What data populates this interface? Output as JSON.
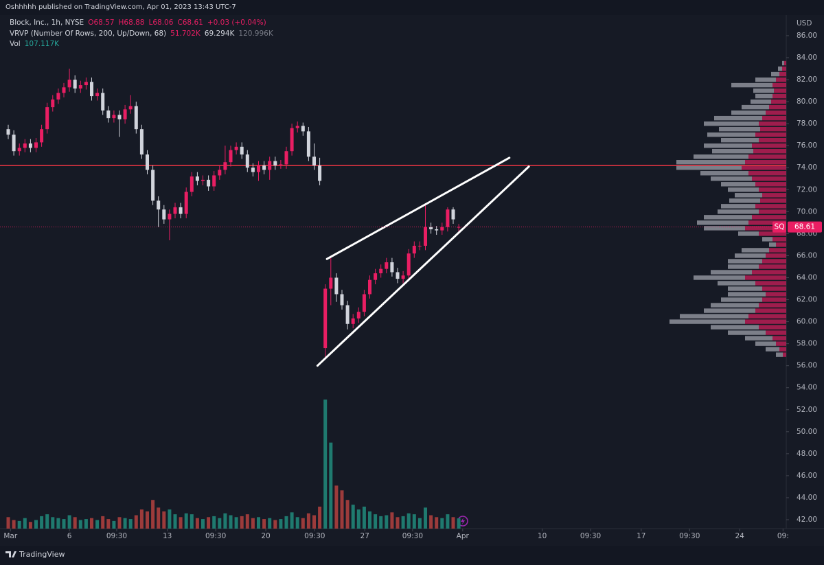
{
  "chart_data": {
    "type": "candlestick",
    "published": "Oshhhhh published on TradingView.com, Apr 01, 2023 13:43 UTC-7",
    "title": "Block, Inc., 1h, NYSE",
    "ohlc_legend": [
      "O68.57",
      "H68.88",
      "L68.06",
      "C68.61",
      "+0.03 (+0.04%)"
    ],
    "vrvp_title": "VRVP (Number Of Rows, 200, Up/Down, 68)",
    "vrvp_legend": [
      "51.702K",
      "69.294K",
      "120.996K"
    ],
    "volume_title": "Vol",
    "volume_legend": "107.117K",
    "currency": "USD",
    "symbol": "SQ",
    "footer": "TradingView",
    "up_color": "#e91e63",
    "down_color": "#d1d4dc",
    "volume_up_color": "#1f7a6f",
    "volume_down_color": "#9c3b3b",
    "ylim": [
      41.19,
      87.37
    ],
    "yticks": [
      {
        "value": 42,
        "label": "42.00"
      },
      {
        "value": 44,
        "label": "44.00"
      },
      {
        "value": 46,
        "label": "46.00"
      },
      {
        "value": 48,
        "label": "48.00"
      },
      {
        "value": 50,
        "label": "50.00"
      },
      {
        "value": 52,
        "label": "52.00"
      },
      {
        "value": 54,
        "label": "54.00"
      },
      {
        "value": 56,
        "label": "56.00"
      },
      {
        "value": 58,
        "label": "58.00"
      },
      {
        "value": 60,
        "label": "60.00"
      },
      {
        "value": 62,
        "label": "62.00"
      },
      {
        "value": 64,
        "label": "64.00"
      },
      {
        "value": 66,
        "label": "66.00"
      },
      {
        "value": 68,
        "label": "68.00"
      },
      {
        "value": 70,
        "label": "70.00"
      },
      {
        "value": 72,
        "label": "72.00"
      },
      {
        "value": 74,
        "label": "74.00"
      },
      {
        "value": 76,
        "label": "76.00"
      },
      {
        "value": 78,
        "label": "78.00"
      },
      {
        "value": 80,
        "label": "80.00"
      },
      {
        "value": 82,
        "label": "82.00"
      },
      {
        "value": 84,
        "label": "84.00"
      },
      {
        "value": 86,
        "label": "86.00"
      }
    ],
    "xticks": [
      {
        "value": 0.4,
        "label": "Mar"
      },
      {
        "value": 11,
        "label": "6"
      },
      {
        "value": 19.5,
        "label": "09:30"
      },
      {
        "value": 28.6,
        "label": "13"
      },
      {
        "value": 37.3,
        "label": "09:30"
      },
      {
        "value": 46.3,
        "label": "20"
      },
      {
        "value": 55.1,
        "label": "09:30"
      },
      {
        "value": 64.1,
        "label": "27"
      },
      {
        "value": 72.7,
        "label": "09:30"
      },
      {
        "value": 81.7,
        "label": "Apr"
      },
      {
        "value": 96,
        "label": "10"
      },
      {
        "value": 104.7,
        "label": "09:30"
      },
      {
        "value": 113.8,
        "label": "17"
      },
      {
        "value": 122.5,
        "label": "09:30"
      },
      {
        "value": 131.5,
        "label": "24"
      },
      {
        "value": 139.3,
        "label": "09:"
      }
    ],
    "candles": [
      [
        77.5,
        77.9,
        76.6,
        77
      ],
      [
        77,
        77.4,
        75.1,
        75.5
      ],
      [
        75.5,
        76.2,
        75.1,
        75.8
      ],
      [
        75.8,
        76.6,
        75.4,
        76.2
      ],
      [
        76.2,
        76.6,
        75.4,
        75.8
      ],
      [
        75.8,
        76.7,
        75.4,
        76.3
      ],
      [
        76.3,
        77.9,
        75.9,
        77.5
      ],
      [
        77.5,
        79.9,
        77.1,
        79.5
      ],
      [
        79.5,
        80.6,
        79.1,
        80.2
      ],
      [
        80.2,
        81.2,
        79.8,
        80.8
      ],
      [
        80.8,
        81.7,
        80.4,
        81.3
      ],
      [
        81.3,
        83,
        80.9,
        82
      ],
      [
        82,
        82.4,
        80.8,
        81.2
      ],
      [
        81.2,
        81.9,
        80.8,
        81.5
      ],
      [
        81.5,
        82.2,
        81.1,
        81.8
      ],
      [
        81.8,
        82.2,
        80.1,
        80.5
      ],
      [
        80.5,
        81.2,
        80.1,
        80.8
      ],
      [
        80.8,
        81.2,
        78.8,
        79.2
      ],
      [
        79.2,
        79.6,
        78.1,
        78.5
      ],
      [
        78.5,
        79.2,
        78.1,
        78.8
      ],
      [
        78.8,
        79.2,
        76.8,
        78.4
      ],
      [
        78.4,
        79.7,
        78,
        79.3
      ],
      [
        79.3,
        80.6,
        78.9,
        79.6
      ],
      [
        79.6,
        80,
        77.1,
        77.5
      ],
      [
        77.5,
        77.9,
        74.8,
        75.2
      ],
      [
        75.2,
        75.6,
        73.4,
        73.8
      ],
      [
        73.8,
        74.2,
        70.6,
        71
      ],
      [
        71,
        71.4,
        68.6,
        70.2
      ],
      [
        70.2,
        70.6,
        68.9,
        69.3
      ],
      [
        69.3,
        70.2,
        67.4,
        69.8
      ],
      [
        69.8,
        70.8,
        69.4,
        70.4
      ],
      [
        70.4,
        70.8,
        69.4,
        69.8
      ],
      [
        69.8,
        72.2,
        69.4,
        71.8
      ],
      [
        71.8,
        73.6,
        71.4,
        73.2
      ],
      [
        73.2,
        73.6,
        72.4,
        72.8
      ],
      [
        72.8,
        73.3,
        72.4,
        72.9
      ],
      [
        72.9,
        73.3,
        71.9,
        72.3
      ],
      [
        72.3,
        73.7,
        71.9,
        73.3
      ],
      [
        73.3,
        74.2,
        72.9,
        73.8
      ],
      [
        73.8,
        76,
        73.4,
        74.5
      ],
      [
        74.5,
        76,
        74.1,
        75.6
      ],
      [
        75.6,
        76.3,
        75.2,
        75.9
      ],
      [
        75.9,
        76.3,
        74.8,
        75.2
      ],
      [
        75.2,
        75.6,
        73.6,
        74
      ],
      [
        74,
        74.4,
        73.2,
        73.6
      ],
      [
        73.6,
        74.6,
        72.8,
        74.2
      ],
      [
        74.2,
        74.6,
        73.4,
        73.8
      ],
      [
        73.8,
        75,
        72.9,
        74.6
      ],
      [
        74.6,
        75,
        73.8,
        74.2
      ],
      [
        74.2,
        74.7,
        73.9,
        74.3
      ],
      [
        74.3,
        75.9,
        73.9,
        75.5
      ],
      [
        75.5,
        78,
        75.1,
        77.6
      ],
      [
        77.6,
        78.2,
        77.2,
        77.8
      ],
      [
        77.8,
        78.1,
        76.9,
        77.3
      ],
      [
        77.3,
        77.7,
        74.6,
        75
      ],
      [
        75,
        76.2,
        73.8,
        74.2
      ],
      [
        74.2,
        74.9,
        72.4,
        72.8
      ],
      [
        57.6,
        63.4,
        56.8,
        63
      ],
      [
        63,
        65.8,
        61.5,
        64
      ],
      [
        64,
        64.4,
        61.8,
        62.5
      ],
      [
        62.5,
        62.9,
        61.1,
        61.5
      ],
      [
        61.5,
        61.9,
        59.3,
        59.8
      ],
      [
        59.8,
        60.7,
        59.4,
        60.3
      ],
      [
        60.3,
        61.3,
        59.9,
        60.9
      ],
      [
        60.9,
        62.9,
        60.5,
        62.5
      ],
      [
        62.5,
        64.2,
        62.1,
        63.8
      ],
      [
        63.8,
        64.8,
        63.4,
        64.4
      ],
      [
        64.4,
        65.2,
        64,
        64.8
      ],
      [
        64.8,
        65.8,
        64.4,
        65.4
      ],
      [
        65.4,
        65.8,
        64.1,
        64.5
      ],
      [
        64.5,
        64.9,
        63.5,
        63.9
      ],
      [
        63.9,
        64.6,
        63.5,
        64.2
      ],
      [
        64.2,
        66.6,
        63.8,
        66.2
      ],
      [
        66.2,
        67.3,
        65.8,
        66.9
      ],
      [
        66.9,
        67.3,
        66.5,
        66.9
      ],
      [
        66.9,
        70.6,
        66.5,
        68.6
      ],
      [
        68.6,
        69,
        68,
        68.4
      ],
      [
        68.4,
        68.7,
        67.9,
        68.3
      ],
      [
        68.3,
        69,
        67.9,
        68.6
      ],
      [
        68.6,
        70.4,
        68.2,
        70.2
      ],
      [
        70.2,
        70.4,
        68.9,
        69.3
      ],
      [
        68.57,
        68.88,
        68.06,
        68.61
      ]
    ],
    "volumes": [
      120,
      90,
      80,
      110,
      70,
      90,
      130,
      150,
      120,
      110,
      100,
      140,
      120,
      90,
      100,
      110,
      90,
      130,
      100,
      80,
      120,
      110,
      100,
      140,
      200,
      180,
      300,
      220,
      180,
      200,
      150,
      120,
      160,
      150,
      110,
      100,
      120,
      130,
      110,
      160,
      140,
      120,
      130,
      150,
      110,
      120,
      100,
      110,
      90,
      100,
      130,
      170,
      120,
      110,
      160,
      140,
      230,
      1350,
      900,
      450,
      400,
      300,
      250,
      200,
      230,
      180,
      150,
      130,
      140,
      170,
      120,
      130,
      160,
      150,
      110,
      220,
      140,
      120,
      110,
      150,
      120,
      107.117
    ],
    "vrvp": {
      "prices": [
        83.5,
        83,
        82.5,
        82,
        81.5,
        81,
        80.5,
        80,
        79.5,
        79,
        78.5,
        78,
        77.5,
        77,
        76.5,
        76,
        75.5,
        75,
        74.5,
        74,
        73.5,
        73,
        72.5,
        72,
        71.5,
        71,
        70.5,
        70,
        69.5,
        69,
        68.5,
        68,
        67.5,
        67,
        66.5,
        66,
        65.5,
        65,
        64.5,
        64,
        63.5,
        63,
        62.5,
        62,
        61.5,
        61,
        60.5,
        60,
        59.5,
        59,
        58.5,
        58,
        57.5,
        57
      ],
      "up": [
        3,
        6,
        10,
        15,
        20,
        18,
        20,
        22,
        25,
        30,
        35,
        40,
        38,
        45,
        40,
        50,
        48,
        55,
        60,
        65,
        55,
        50,
        45,
        40,
        35,
        38,
        45,
        40,
        50,
        55,
        60,
        40,
        20,
        15,
        25,
        30,
        35,
        40,
        50,
        60,
        45,
        35,
        30,
        35,
        40,
        45,
        55,
        60,
        40,
        30,
        20,
        15,
        10,
        5
      ],
      "down": [
        3,
        6,
        12,
        30,
        60,
        30,
        25,
        30,
        40,
        50,
        70,
        80,
        60,
        70,
        55,
        70,
        60,
        80,
        100,
        95,
        70,
        60,
        50,
        45,
        40,
        45,
        50,
        60,
        70,
        75,
        60,
        30,
        15,
        10,
        40,
        45,
        50,
        45,
        60,
        75,
        55,
        50,
        55,
        60,
        70,
        75,
        100,
        110,
        70,
        55,
        40,
        30,
        20,
        10
      ]
    },
    "hline": {
      "price": 74.2,
      "color": "#f23645"
    },
    "trendlines": [
      [
        [
          57.3,
          65.7
        ],
        [
          90.1,
          74.9
        ]
      ],
      [
        [
          55.6,
          56.0
        ],
        [
          93.6,
          74.1
        ]
      ]
    ],
    "trendline_color": "#ffffff"
  }
}
